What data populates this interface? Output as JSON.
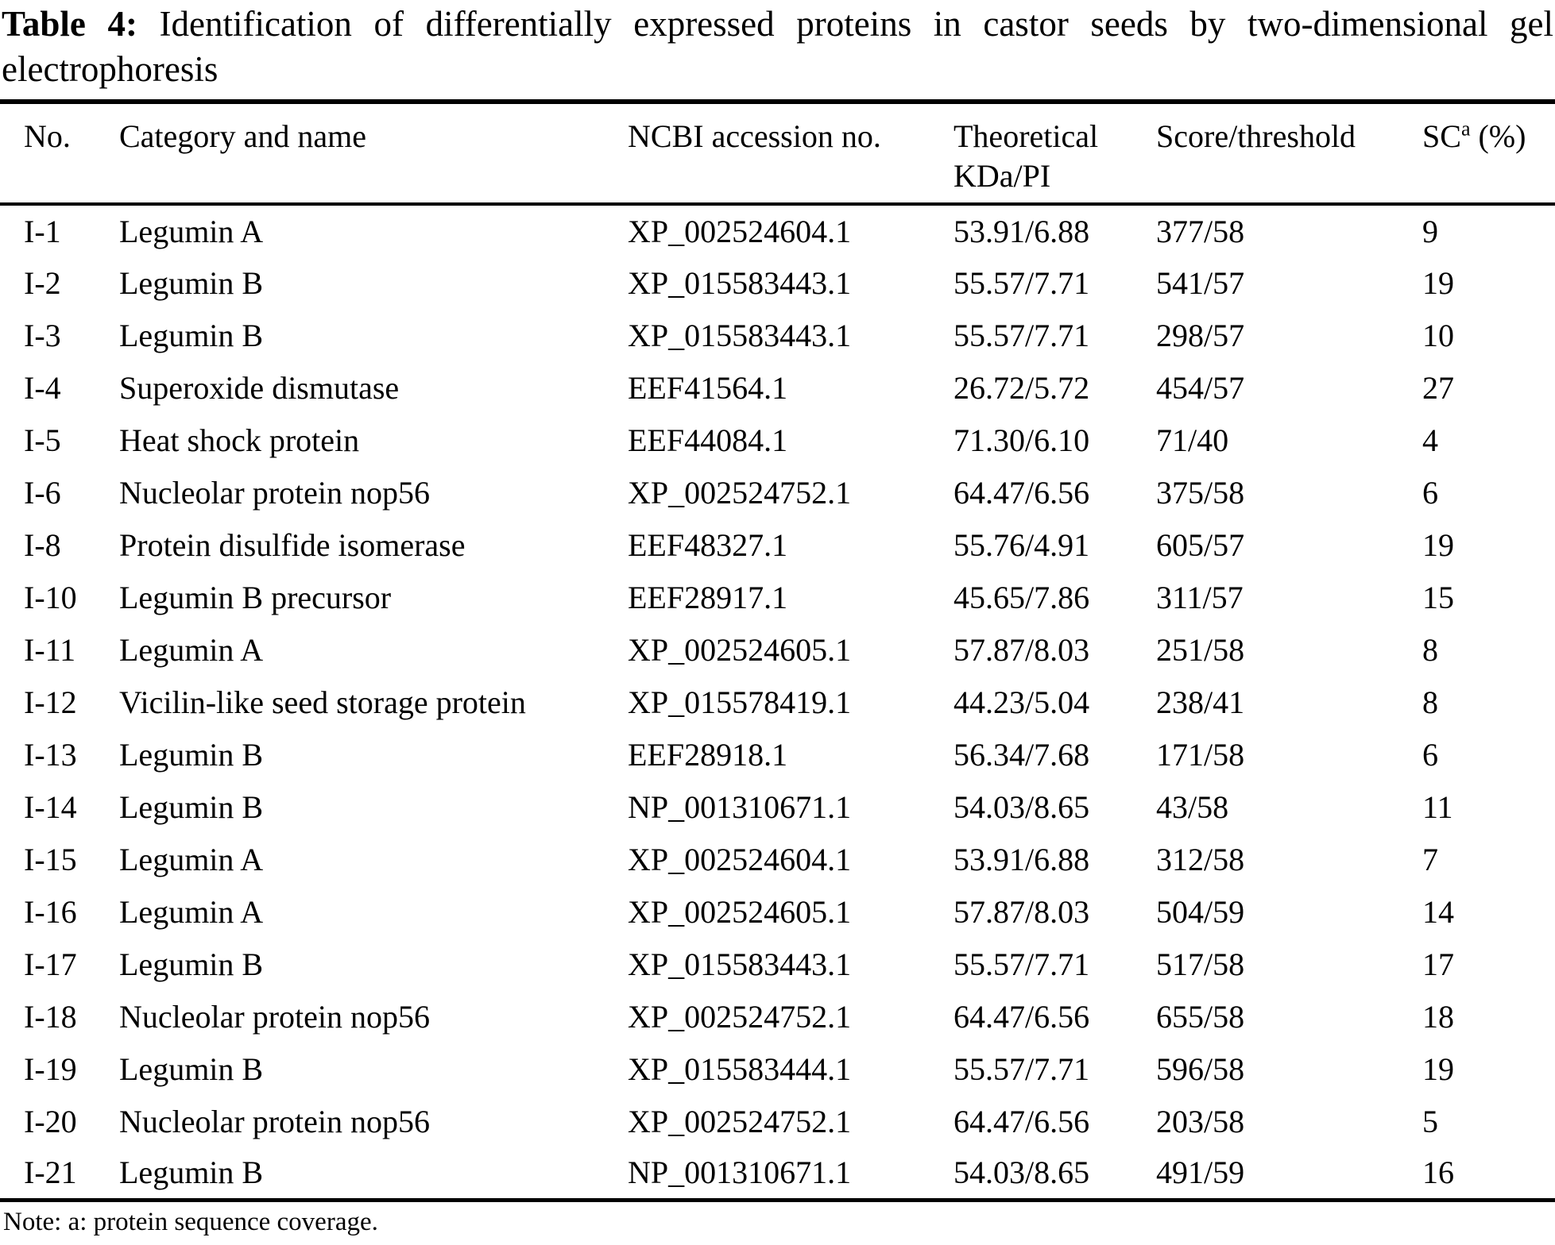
{
  "title": {
    "prefix": "Table 4:",
    "line1": "Identification of differentially expressed proteins in castor seeds by two-dimensional gel",
    "line2": "electrophoresis"
  },
  "table": {
    "headers": {
      "no": "No.",
      "category": "Category and name",
      "accession": "NCBI accession no.",
      "theoretical_line1": "Theoretical",
      "theoretical_line2": "KDa/PI",
      "score": "Score/threshold",
      "sc_text": "SC",
      "sc_sup": "a",
      "sc_suffix": " (%)"
    },
    "rows": [
      {
        "no": "I-1",
        "category": "Legumin A",
        "accession": "XP_002524604.1",
        "theoretical": "53.91/6.88",
        "score": "377/58",
        "sc": "9"
      },
      {
        "no": "I-2",
        "category": "Legumin B",
        "accession": "XP_015583443.1",
        "theoretical": "55.57/7.71",
        "score": "541/57",
        "sc": "19"
      },
      {
        "no": "I-3",
        "category": "Legumin B",
        "accession": "XP_015583443.1",
        "theoretical": "55.57/7.71",
        "score": "298/57",
        "sc": "10"
      },
      {
        "no": "I-4",
        "category": "Superoxide dismutase",
        "accession": "EEF41564.1",
        "theoretical": "26.72/5.72",
        "score": "454/57",
        "sc": "27"
      },
      {
        "no": "I-5",
        "category": "Heat shock protein",
        "accession": "EEF44084.1",
        "theoretical": "71.30/6.10",
        "score": "71/40",
        "sc": "4"
      },
      {
        "no": "I-6",
        "category": "Nucleolar protein nop56",
        "accession": "XP_002524752.1",
        "theoretical": "64.47/6.56",
        "score": "375/58",
        "sc": "6"
      },
      {
        "no": "I-8",
        "category": "Protein disulfide isomerase",
        "accession": "EEF48327.1",
        "theoretical": "55.76/4.91",
        "score": "605/57",
        "sc": "19"
      },
      {
        "no": "I-10",
        "category": "Legumin B precursor",
        "accession": "EEF28917.1",
        "theoretical": "45.65/7.86",
        "score": "311/57",
        "sc": "15"
      },
      {
        "no": "I-11",
        "category": "Legumin A",
        "accession": "XP_002524605.1",
        "theoretical": "57.87/8.03",
        "score": "251/58",
        "sc": "8"
      },
      {
        "no": "I-12",
        "category": "Vicilin-like seed storage protein",
        "accession": "XP_015578419.1",
        "theoretical": "44.23/5.04",
        "score": "238/41",
        "sc": "8"
      },
      {
        "no": "I-13",
        "category": "Legumin B",
        "accession": "EEF28918.1",
        "theoretical": "56.34/7.68",
        "score": "171/58",
        "sc": "6"
      },
      {
        "no": "I-14",
        "category": "Legumin B",
        "accession": "NP_001310671.1",
        "theoretical": "54.03/8.65",
        "score": "43/58",
        "sc": "11"
      },
      {
        "no": "I-15",
        "category": "Legumin A",
        "accession": "XP_002524604.1",
        "theoretical": "53.91/6.88",
        "score": "312/58",
        "sc": "7"
      },
      {
        "no": "I-16",
        "category": "Legumin A",
        "accession": "XP_002524605.1",
        "theoretical": "57.87/8.03",
        "score": "504/59",
        "sc": "14"
      },
      {
        "no": "I-17",
        "category": "Legumin B",
        "accession": "XP_015583443.1",
        "theoretical": "55.57/7.71",
        "score": "517/58",
        "sc": "17"
      },
      {
        "no": "I-18",
        "category": "Nucleolar protein nop56",
        "accession": "XP_002524752.1",
        "theoretical": "64.47/6.56",
        "score": "655/58",
        "sc": "18"
      },
      {
        "no": "I-19",
        "category": "Legumin B",
        "accession": "XP_015583444.1",
        "theoretical": "55.57/7.71",
        "score": "596/58",
        "sc": "19"
      },
      {
        "no": "I-20",
        "category": "Nucleolar protein nop56",
        "accession": "XP_002524752.1",
        "theoretical": "64.47/6.56",
        "score": "203/58",
        "sc": "5"
      },
      {
        "no": "I-21",
        "category": "Legumin B",
        "accession": "NP_001310671.1",
        "theoretical": "54.03/8.65",
        "score": "491/59",
        "sc": "16"
      }
    ]
  },
  "note": "Note: a: protein sequence coverage."
}
